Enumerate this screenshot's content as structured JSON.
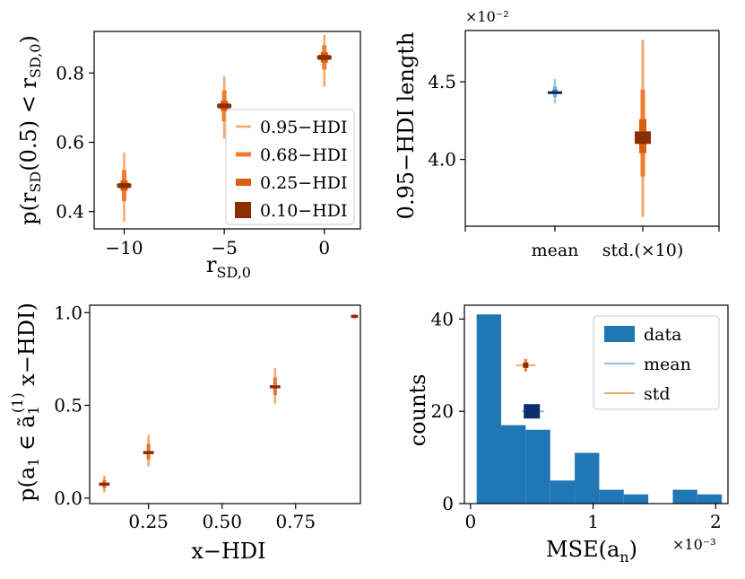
{
  "chart_data": [
    {
      "id": "p1",
      "type": "scatter",
      "xlabel_main": "r",
      "xlabel_sub": "SD,0",
      "ylabel": "p(r_SD(0.5) < r_SD,0)",
      "ylabel_parts": [
        "p(r",
        "SD",
        "(0.5) < r",
        "SD,0",
        ")"
      ],
      "xlim": [
        -11.5,
        1.8
      ],
      "ylim": [
        0.35,
        0.92
      ],
      "xticks": [
        -10,
        -5,
        0
      ],
      "xtick_labels": [
        "−10",
        "−5",
        "0"
      ],
      "yticks": [
        0.4,
        0.6,
        0.8
      ],
      "ytick_labels": [
        "0.4",
        "0.6",
        "0.8"
      ],
      "points": [
        {
          "x": -10,
          "center": 0.475,
          "hdi95": [
            0.37,
            0.57
          ],
          "hdi68": [
            0.43,
            0.52
          ],
          "hdi25": [
            0.46,
            0.49
          ],
          "hdi10": [
            0.468,
            0.482
          ]
        },
        {
          "x": -5,
          "center": 0.705,
          "hdi95": [
            0.61,
            0.79
          ],
          "hdi68": [
            0.66,
            0.75
          ],
          "hdi25": [
            0.69,
            0.72
          ],
          "hdi10": [
            0.698,
            0.712
          ]
        },
        {
          "x": 0,
          "center": 0.845,
          "hdi95": [
            0.76,
            0.91
          ],
          "hdi68": [
            0.81,
            0.88
          ],
          "hdi25": [
            0.83,
            0.86
          ],
          "hdi10": [
            0.838,
            0.852
          ]
        }
      ],
      "legend": [
        "0.95−HDI",
        "0.68−HDI",
        "0.25−HDI",
        "0.10−HDI"
      ],
      "legend_colors": [
        "#f5a66b",
        "#f07d2e",
        "#d95f0e",
        "#8c2d04"
      ],
      "legend_position": "lower-right"
    },
    {
      "id": "p2",
      "type": "scatter",
      "ylabel": "0.95−HDI length",
      "offset_text": "×10⁻²",
      "ylim": [
        3.57,
        4.83
      ],
      "yticks": [
        4.0,
        4.5
      ],
      "ytick_labels": [
        "4.0",
        "4.5"
      ],
      "categories": [
        "mean",
        "std.(×10)"
      ],
      "points": [
        {
          "category": "mean",
          "center": 4.43,
          "hdi95": [
            4.36,
            4.52
          ],
          "hdi68": [
            4.4,
            4.47
          ],
          "hdi25": [
            4.42,
            4.45
          ],
          "color_set": "blue"
        },
        {
          "category": "std.(×10)",
          "center": 4.14,
          "hdi95": [
            3.63,
            4.77
          ],
          "hdi68": [
            3.89,
            4.45
          ],
          "hdi25": [
            4.04,
            4.26
          ],
          "color_set": "orange"
        }
      ]
    },
    {
      "id": "p3",
      "type": "scatter",
      "xlabel": "x−HDI",
      "ylabel_parts": [
        "p(a",
        "1",
        " ∈ ã",
        "1",
        "(1)",
        " x−HDI)"
      ],
      "xlim": [
        0.05,
        0.97
      ],
      "ylim": [
        -0.03,
        1.04
      ],
      "xticks": [
        0.25,
        0.5,
        0.75
      ],
      "xtick_labels": [
        "0.25",
        "0.50",
        "0.75"
      ],
      "yticks": [
        0.0,
        0.5,
        1.0
      ],
      "ytick_labels": [
        "0.0",
        "0.5",
        "1.0"
      ],
      "points": [
        {
          "x": 0.1,
          "y": 0.075,
          "yerr": [
            0.03,
            0.12
          ],
          "xerr": 0.018
        },
        {
          "x": 0.25,
          "y": 0.245,
          "yerr": [
            0.17,
            0.34
          ],
          "xerr": 0.018
        },
        {
          "x": 0.68,
          "y": 0.6,
          "yerr": [
            0.51,
            0.7
          ],
          "xerr": 0.018
        },
        {
          "x": 0.95,
          "y": 0.98,
          "yerr": [
            0.965,
            0.99
          ],
          "xerr": 0.012
        }
      ]
    },
    {
      "id": "p4",
      "type": "bar",
      "xlabel": "MSE(a",
      "xlabel_sub": "n",
      "xlabel_end": ")",
      "ylabel": "counts",
      "offset_text": "×10⁻³",
      "xlim": [
        -0.05,
        2.1
      ],
      "ylim": [
        0,
        43
      ],
      "xticks": [
        0,
        1,
        2
      ],
      "xtick_labels": [
        "0",
        "1",
        "2"
      ],
      "yticks": [
        0,
        20,
        40
      ],
      "ytick_labels": [
        "0",
        "20",
        "40"
      ],
      "bins": [
        {
          "left": 0.05,
          "right": 0.25,
          "count": 41
        },
        {
          "left": 0.25,
          "right": 0.45,
          "count": 17
        },
        {
          "left": 0.45,
          "right": 0.65,
          "count": 16
        },
        {
          "left": 0.65,
          "right": 0.85,
          "count": 5
        },
        {
          "left": 0.85,
          "right": 1.05,
          "count": 11
        },
        {
          "left": 1.05,
          "right": 1.25,
          "count": 3
        },
        {
          "left": 1.25,
          "right": 1.45,
          "count": 2
        },
        {
          "left": 1.45,
          "right": 1.65,
          "count": 0
        },
        {
          "left": 1.65,
          "right": 1.85,
          "count": 3
        },
        {
          "left": 1.85,
          "right": 2.05,
          "count": 2
        }
      ],
      "mean_marker": {
        "x": 0.5,
        "y": 20,
        "xerr": [
          0.42,
          0.6
        ]
      },
      "std_marker": {
        "x": 0.45,
        "y": 30,
        "xerr": [
          0.37,
          0.53
        ]
      },
      "legend": [
        "data",
        "mean",
        "std"
      ],
      "legend_colors": [
        "#1f77b4",
        "#8dbfe0",
        "#f5a66b"
      ],
      "legend_position": "upper-right"
    }
  ]
}
